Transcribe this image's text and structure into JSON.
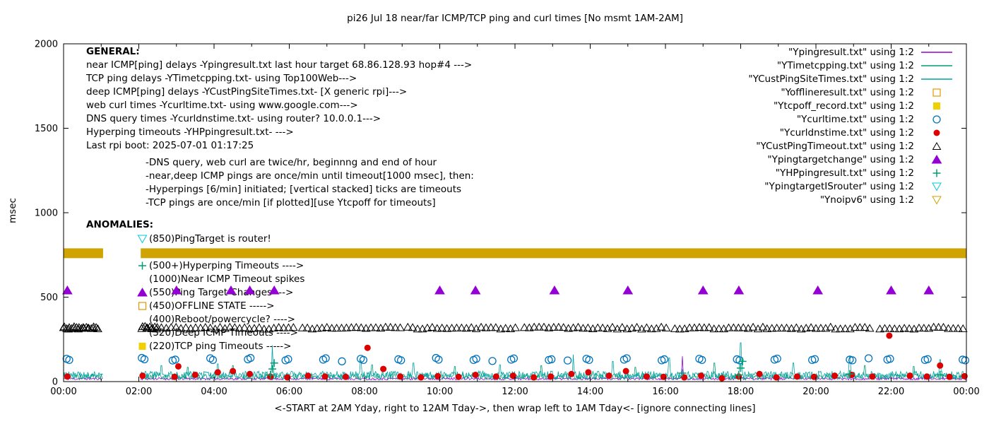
{
  "title": "pi26 Jul 18  near/far ICMP/TCP ping and curl times [No msmt 1AM-2AM]",
  "ylabel": "msec",
  "xlabel": "<-START at 2AM Yday, right to 12AM Tday->, then wrap left to 1AM Tday<- [ignore connecting lines]",
  "general": {
    "header": "GENERAL:",
    "lines": [
      {
        "text": "near ICMP[ping] delays -Ypingresult.txt last hour target 68.86.128.93 hop#4 --->",
        "indent": false,
        "gap": false
      },
      {
        "text": "TCP ping delays -YTimetcpping.txt- using Top100Web--->",
        "indent": false,
        "gap": false
      },
      {
        "text": "deep ICMP[ping] delays -YCustPingSiteTimes.txt- [X generic rpi]--->",
        "indent": false,
        "gap": false
      },
      {
        "text": "web curl times -Ycurltime.txt- using www.google.com--->",
        "indent": false,
        "gap": false
      },
      {
        "text": "DNS query times -Ycurldnstime.txt- using router? 10.0.0.1--->",
        "indent": false,
        "gap": false
      },
      {
        "text": "Hyperping timeouts -YHPpingresult.txt- --->",
        "indent": false,
        "gap": false
      },
      {
        "text": "Last rpi boot: 2025-07-01 01:17:25",
        "indent": false,
        "gap": false
      },
      {
        "text": "-DNS query, web curl are twice/hr, beginnng and end of hour",
        "indent": true,
        "gap": true
      },
      {
        "text": "-near,deep ICMP pings are once/min until timeout[1000 msec], then:",
        "indent": true,
        "gap": false
      },
      {
        "text": "-Hyperpings [6/min] initiated; [vertical stacked] ticks are timeouts",
        "indent": true,
        "gap": false
      },
      {
        "text": "-TCP pings are once/min [if plotted][use Ytcpoff for timeouts]",
        "indent": true,
        "gap": false
      }
    ]
  },
  "anomalies": {
    "header": "ANOMALIES:",
    "items": [
      {
        "icon": "tri-down-open",
        "color": "#00c8d7",
        "text": "(850)PingTarget is router!"
      },
      {
        "icon": "",
        "color": "",
        "text": ""
      },
      {
        "icon": "plus",
        "color": "#009e73",
        "text": "(500+)Hyperping Timeouts ---->"
      },
      {
        "icon": "",
        "color": "",
        "text": "(1000)Near ICMP Timeout spikes"
      },
      {
        "icon": "tri-up-filled",
        "color": "#9400d3",
        "text": "(550)Ping Target Changes --->"
      },
      {
        "icon": "square-open",
        "color": "#e69500",
        "text": "(450)OFFLINE STATE ----->"
      },
      {
        "icon": "",
        "color": "",
        "text": "(400)Reboot/powercycle? ---->"
      },
      {
        "icon": "",
        "color": "",
        "text": "(320)Deep ICMP Timeouts ---->"
      },
      {
        "icon": "square-filled",
        "color": "#f0d000",
        "text": "(220)TCP ping Timeouts ----->"
      }
    ]
  },
  "chart_data": {
    "type": "line",
    "x_unit": "hours of day (wrapped)",
    "xlim": [
      0,
      24
    ],
    "ylim": [
      0,
      2000
    ],
    "grid": false,
    "legend_position": "top-right",
    "no_measurement_gap_hours": [
      1.05,
      2.05
    ],
    "x_ticks": [
      [
        "00:00",
        0
      ],
      [
        "02:00",
        2
      ],
      [
        "04:00",
        4
      ],
      [
        "06:00",
        6
      ],
      [
        "08:00",
        8
      ],
      [
        "10:00",
        10
      ],
      [
        "12:00",
        12
      ],
      [
        "14:00",
        14
      ],
      [
        "16:00",
        16
      ],
      [
        "18:00",
        18
      ],
      [
        "20:00",
        20
      ],
      [
        "22:00",
        22
      ],
      [
        "00:00",
        24
      ]
    ],
    "y_ticks": [
      [
        "0",
        0
      ],
      [
        "500",
        500
      ],
      [
        "1000",
        1000
      ],
      [
        "1500",
        1500
      ],
      [
        "2000",
        2000
      ]
    ],
    "data_segments": [
      [
        0,
        1.05
      ],
      [
        2.05,
        24
      ]
    ],
    "legend": [
      {
        "label": "\"Ypingresult.txt\" using 1:2",
        "marker": "line",
        "color": "#9400d3"
      },
      {
        "label": "\"YTimetcpping.txt\" using 1:2",
        "marker": "line",
        "color": "#009e73"
      },
      {
        "label": "\"YCustPingSiteTimes.txt\" using 1:2",
        "marker": "line",
        "color": "#00a2a2"
      },
      {
        "label": "\"Yofflineresult.txt\" using 1:2",
        "marker": "square-open",
        "color": "#e69500"
      },
      {
        "label": "\"Ytcpoff_record.txt\" using 1:2",
        "marker": "square-filled",
        "color": "#f0d000"
      },
      {
        "label": "\"Ycurltime.txt\" using 1:2",
        "marker": "circle-open",
        "color": "#0072bd"
      },
      {
        "label": "\"Ycurldnstime.txt\" using 1:2",
        "marker": "circle-filled",
        "color": "#dd0000"
      },
      {
        "label": "\"YCustPingTimeout.txt\" using 1:2",
        "marker": "tri-up-open",
        "color": "#000000"
      },
      {
        "label": "\"Ypingtargetchange\" using 1:2",
        "marker": "tri-up-filled",
        "color": "#9400d3"
      },
      {
        "label": "\"YHPpingresult.txt\" using 1:2",
        "marker": "plus",
        "color": "#009e73"
      },
      {
        "label": "\"YpingtargetISrouter\" using 1:2",
        "marker": "tri-down-open",
        "color": "#00c8d7"
      },
      {
        "label": "\"Ynoipv6\" using 1:2",
        "marker": "tri-down-open",
        "color": "#cfa300"
      }
    ],
    "series": [
      {
        "id": "ypingresult-line",
        "kind": "noise-line",
        "color": "#9400d3",
        "seed": 11,
        "base": [
          10,
          24
        ],
        "spikes": [
          [
            16.45,
            150
          ]
        ]
      },
      {
        "id": "ytimetcpping-line",
        "kind": "noise-line",
        "color": "#009e73",
        "seed": 5,
        "base": [
          12,
          48
        ],
        "spikes": [
          [
            3.3,
            85
          ],
          [
            4.5,
            95
          ],
          [
            8.2,
            100
          ],
          [
            10.4,
            90
          ],
          [
            12.7,
            95
          ],
          [
            15.2,
            85
          ],
          [
            17.3,
            110
          ],
          [
            21.3,
            95
          ],
          [
            22.6,
            90
          ]
        ]
      },
      {
        "id": "ycustpingsitetimes-line",
        "kind": "noise-line",
        "color": "#00a2a2",
        "seed": 9,
        "base": [
          16,
          62
        ],
        "spikes": [
          [
            2.6,
            95
          ],
          [
            4.1,
            105
          ],
          [
            5.55,
            215
          ],
          [
            7.9,
            125
          ],
          [
            9.3,
            110
          ],
          [
            11.6,
            100
          ],
          [
            13.55,
            160
          ],
          [
            14.6,
            120
          ],
          [
            16.1,
            140
          ],
          [
            18.0,
            230
          ],
          [
            19.4,
            110
          ],
          [
            20.9,
            150
          ],
          [
            23.3,
            130
          ]
        ]
      },
      {
        "id": "ynoipv6-band",
        "kind": "band",
        "color": "#cfa300",
        "value": 760,
        "thickness_msec": 58,
        "segments": [
          [
            0,
            1.05
          ],
          [
            2.05,
            24
          ]
        ]
      },
      {
        "id": "ycustpingtimeout-markers",
        "kind": "marker-row",
        "marker": "tri-up-open",
        "color": "#000000",
        "value": 318,
        "step": 0.13,
        "jitter": 12,
        "segments": [
          [
            0,
            0.95
          ],
          [
            2.08,
            6.2
          ],
          [
            6.35,
            9.0
          ],
          [
            9.15,
            12.1
          ],
          [
            12.25,
            16.1
          ],
          [
            16.25,
            18.6
          ],
          [
            18.7,
            21.55
          ],
          [
            21.7,
            23.95
          ]
        ]
      },
      {
        "id": "ycustpingtimeout-markers-dense",
        "kind": "marker-row",
        "marker": "tri-up-open",
        "color": "#000000",
        "value": 322,
        "step": 0.065,
        "jitter": 16,
        "segments": [
          [
            0.02,
            0.9
          ],
          [
            2.1,
            2.5
          ]
        ]
      },
      {
        "id": "ycurltime-points",
        "kind": "points",
        "marker": "circle-open",
        "color": "#0072bd",
        "points": [
          [
            0.08,
            135
          ],
          [
            0.15,
            128
          ],
          [
            2.08,
            140
          ],
          [
            2.15,
            132
          ],
          [
            2.9,
            125
          ],
          [
            2.97,
            130
          ],
          [
            3.9,
            138
          ],
          [
            3.97,
            128
          ],
          [
            4.9,
            132
          ],
          [
            4.97,
            140
          ],
          [
            5.9,
            126
          ],
          [
            5.97,
            133
          ],
          [
            6.9,
            130
          ],
          [
            6.97,
            138
          ],
          [
            7.4,
            120
          ],
          [
            7.9,
            135
          ],
          [
            7.97,
            128
          ],
          [
            8.9,
            132
          ],
          [
            8.97,
            126
          ],
          [
            9.9,
            140
          ],
          [
            9.97,
            130
          ],
          [
            10.9,
            128
          ],
          [
            10.97,
            135
          ],
          [
            11.4,
            122
          ],
          [
            11.9,
            130
          ],
          [
            11.97,
            137
          ],
          [
            12.9,
            128
          ],
          [
            12.97,
            132
          ],
          [
            13.4,
            125
          ],
          [
            13.9,
            135
          ],
          [
            13.97,
            128
          ],
          [
            14.9,
            130
          ],
          [
            14.97,
            138
          ],
          [
            15.9,
            126
          ],
          [
            15.97,
            132
          ],
          [
            16.9,
            135
          ],
          [
            16.97,
            128
          ],
          [
            17.9,
            132
          ],
          [
            17.97,
            126
          ],
          [
            18.9,
            130
          ],
          [
            18.97,
            136
          ],
          [
            19.9,
            128
          ],
          [
            19.97,
            133
          ],
          [
            20.9,
            130
          ],
          [
            20.97,
            126
          ],
          [
            21.4,
            138
          ],
          [
            21.9,
            130
          ],
          [
            21.97,
            135
          ],
          [
            22.9,
            128
          ],
          [
            22.97,
            133
          ],
          [
            23.9,
            130
          ],
          [
            23.97,
            126
          ]
        ]
      },
      {
        "id": "ycurldnstime-points",
        "kind": "points",
        "marker": "circle-filled",
        "color": "#dd0000",
        "points": [
          [
            0.1,
            30
          ],
          [
            2.1,
            35
          ],
          [
            2.95,
            28
          ],
          [
            3.05,
            90
          ],
          [
            3.5,
            40
          ],
          [
            4.1,
            55
          ],
          [
            4.5,
            62
          ],
          [
            4.95,
            45
          ],
          [
            5.5,
            30
          ],
          [
            5.95,
            25
          ],
          [
            6.5,
            35
          ],
          [
            6.95,
            30
          ],
          [
            7.5,
            28
          ],
          [
            8.08,
            200
          ],
          [
            8.5,
            75
          ],
          [
            8.95,
            30
          ],
          [
            9.5,
            25
          ],
          [
            9.95,
            32
          ],
          [
            10.5,
            28
          ],
          [
            10.95,
            40
          ],
          [
            11.5,
            30
          ],
          [
            11.95,
            35
          ],
          [
            12.5,
            25
          ],
          [
            12.95,
            30
          ],
          [
            13.5,
            45
          ],
          [
            13.95,
            55
          ],
          [
            14.5,
            35
          ],
          [
            14.95,
            62
          ],
          [
            15.5,
            30
          ],
          [
            15.95,
            28
          ],
          [
            16.5,
            25
          ],
          [
            16.95,
            35
          ],
          [
            17.5,
            20
          ],
          [
            17.95,
            30
          ],
          [
            18.5,
            45
          ],
          [
            18.95,
            25
          ],
          [
            19.5,
            30
          ],
          [
            19.95,
            28
          ],
          [
            20.5,
            35
          ],
          [
            20.95,
            40
          ],
          [
            21.5,
            30
          ],
          [
            21.95,
            272
          ],
          [
            22.5,
            35
          ],
          [
            22.95,
            30
          ],
          [
            23.3,
            95
          ],
          [
            23.55,
            28
          ],
          [
            23.95,
            32
          ]
        ]
      },
      {
        "id": "ypingtargetchange-points",
        "kind": "points",
        "marker": "tri-up-filled",
        "color": "#9400d3",
        "points": [
          [
            0.1,
            540
          ],
          [
            3.0,
            540
          ],
          [
            4.45,
            540
          ],
          [
            4.95,
            540
          ],
          [
            5.6,
            540
          ],
          [
            10.0,
            540
          ],
          [
            10.95,
            540
          ],
          [
            13.05,
            540
          ],
          [
            15.0,
            540
          ],
          [
            17.0,
            540
          ],
          [
            17.95,
            540
          ],
          [
            20.05,
            540
          ],
          [
            22.0,
            540
          ],
          [
            23.0,
            540
          ]
        ]
      },
      {
        "id": "yhppingresult-points",
        "kind": "points",
        "marker": "plus",
        "color": "#009e73",
        "points": [
          [
            5.5,
            40
          ],
          [
            5.55,
            75
          ],
          [
            5.6,
            110
          ],
          [
            16.45,
            50
          ],
          [
            17.95,
            40
          ],
          [
            18.0,
            80
          ],
          [
            18.05,
            120
          ],
          [
            20.9,
            45
          ],
          [
            23.3,
            40
          ]
        ]
      }
    ]
  }
}
